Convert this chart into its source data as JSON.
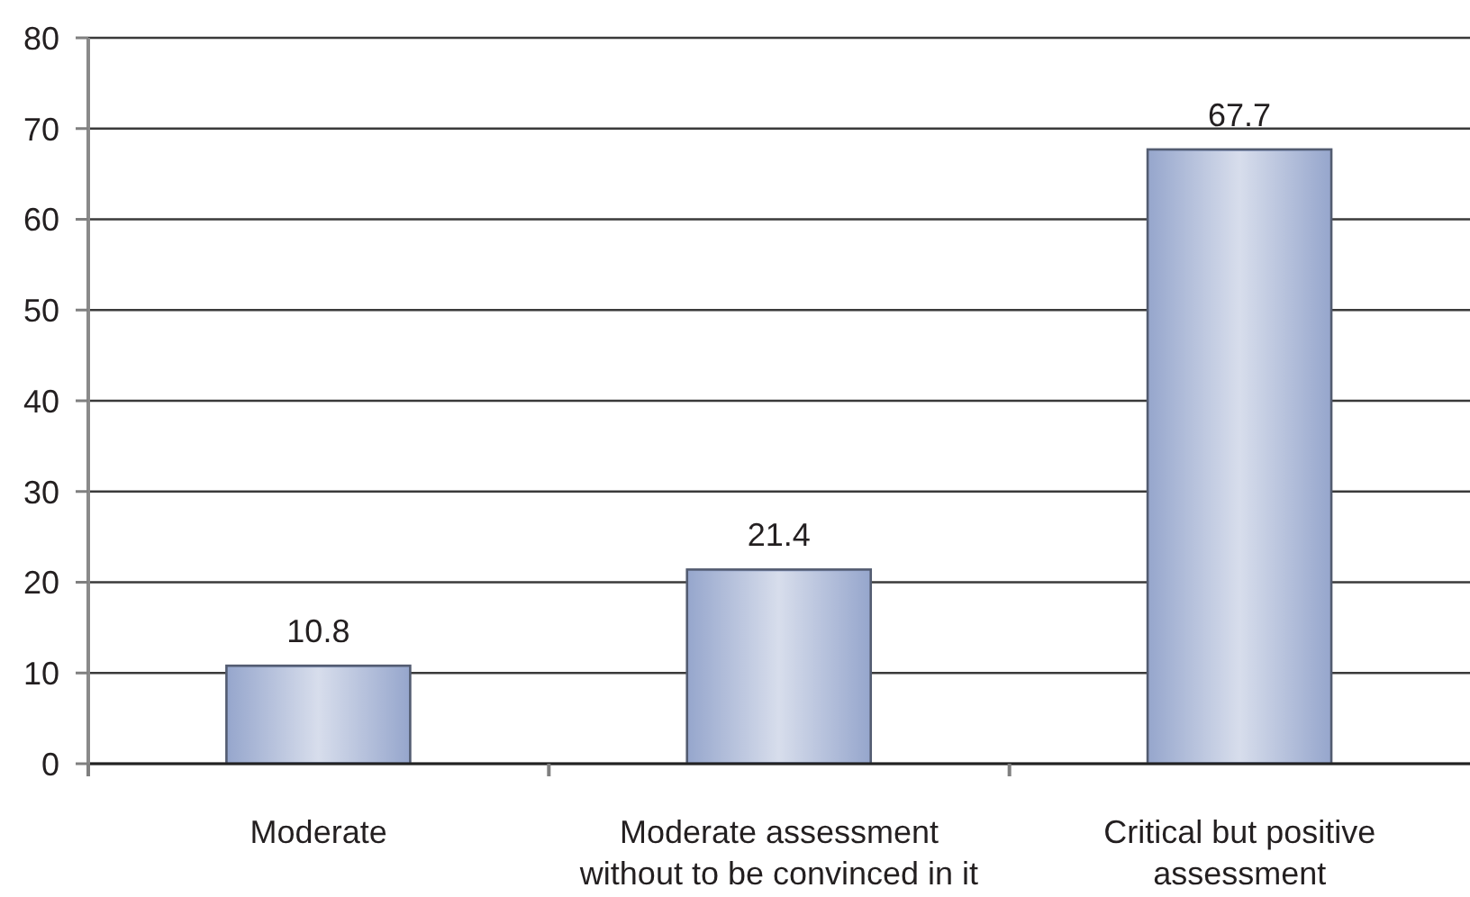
{
  "chart_data": {
    "type": "bar",
    "categories": [
      "Moderate",
      "Moderate assessment without to be convinced in it",
      "Critical but positive assessment"
    ],
    "values": [
      10.8,
      21.4,
      67.7
    ],
    "color": "#97a7cd",
    "ylim": [
      0,
      80
    ],
    "yticks": [
      0,
      10,
      20,
      30,
      40,
      50,
      60,
      70,
      80
    ],
    "grid": "y",
    "data_labels": true
  }
}
